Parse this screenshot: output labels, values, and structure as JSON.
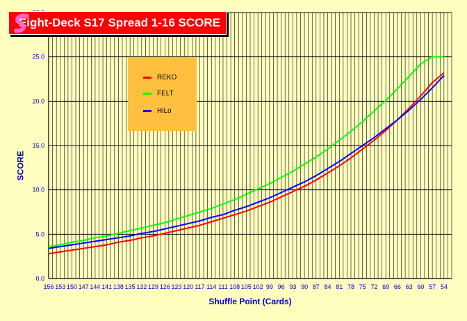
{
  "chart_data": {
    "type": "line",
    "title": "Eight-Deck S17 Spread 1-16 SCORE",
    "xlabel": "Shuffle Point (Cards)",
    "ylabel": "SCORE",
    "ylim": [
      0,
      30
    ],
    "yticks": [
      "0.0",
      "5.0",
      "10.0",
      "15.0",
      "20.0",
      "25.0"
    ],
    "x": [
      156,
      153,
      150,
      147,
      144,
      141,
      138,
      135,
      132,
      129,
      126,
      123,
      120,
      117,
      114,
      111,
      108,
      105,
      102,
      99,
      96,
      93,
      90,
      87,
      84,
      81,
      78,
      75,
      72,
      69,
      66,
      63,
      60,
      57,
      54
    ],
    "x_tick_labels": [
      "156",
      "153",
      "150",
      "147",
      "144",
      "141",
      "138",
      "135",
      "132",
      "129",
      "126",
      "123",
      "120",
      "117",
      "114",
      "111",
      "108",
      "105",
      "102",
      "99",
      "96",
      "93",
      "90",
      "87",
      "84",
      "81",
      "78",
      "75",
      "72",
      "69",
      "66",
      "63",
      "60",
      "57",
      "54"
    ],
    "x_end": 52,
    "grid": true,
    "legend": "upper-left",
    "series": [
      {
        "name": "REKO",
        "color": "#FF0000",
        "values": [
          2.8,
          3.0,
          3.2,
          3.4,
          3.6,
          3.8,
          4.1,
          4.3,
          4.6,
          4.8,
          5.1,
          5.4,
          5.7,
          6.0,
          6.4,
          6.8,
          7.2,
          7.6,
          8.1,
          8.6,
          9.2,
          9.8,
          10.4,
          11.1,
          11.9,
          12.7,
          13.6,
          14.6,
          15.6,
          16.7,
          17.9,
          19.2,
          20.6,
          22.1,
          23.2
        ]
      },
      {
        "name": "FELT",
        "color": "#00FF00",
        "values": [
          3.6,
          3.8,
          4.1,
          4.3,
          4.6,
          4.8,
          5.1,
          5.4,
          5.7,
          6.0,
          6.3,
          6.7,
          7.1,
          7.5,
          7.9,
          8.4,
          8.9,
          9.5,
          10.1,
          10.7,
          11.4,
          12.1,
          12.9,
          13.7,
          14.6,
          15.6,
          16.6,
          17.7,
          18.9,
          20.1,
          21.4,
          22.8,
          24.2,
          25.0,
          25.0
        ]
      },
      {
        "name": "HiLo",
        "color": "#0000FF",
        "values": [
          3.4,
          3.6,
          3.8,
          4.0,
          4.2,
          4.4,
          4.6,
          4.8,
          5.1,
          5.3,
          5.6,
          5.9,
          6.2,
          6.5,
          6.9,
          7.2,
          7.7,
          8.1,
          8.6,
          9.1,
          9.7,
          10.3,
          10.9,
          11.6,
          12.4,
          13.2,
          14.1,
          15.0,
          15.9,
          16.9,
          17.9,
          19.0,
          20.2,
          21.5,
          22.9
        ]
      }
    ]
  },
  "colors": {
    "background": "#FFFFC0",
    "title_bg": "#FF0000",
    "legend_bg": "#FFC040",
    "axis_text": "#0000CC"
  }
}
